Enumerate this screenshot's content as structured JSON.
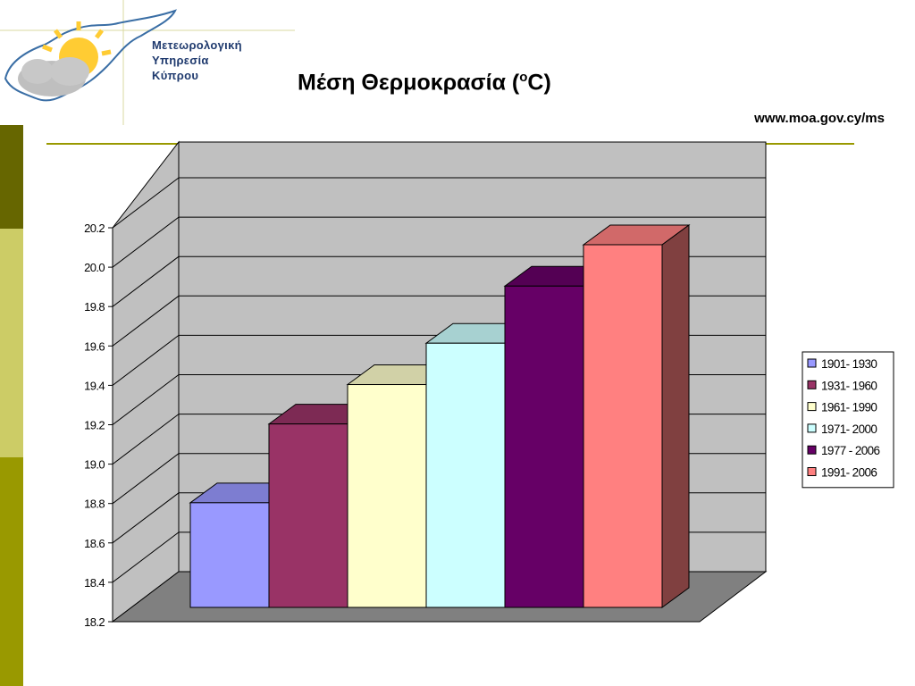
{
  "header": {
    "org_name_lines": [
      "Μετεωρολογική",
      "Υπηρεσία",
      "Κύπρου"
    ],
    "title_main": "Μέση Θερμοκρασία (",
    "title_sup": "o",
    "title_end": "C)",
    "website": "www.moa.gov.cy/ms"
  },
  "colors": {
    "strip": [
      "#666600",
      "#cccc66",
      "#999900"
    ],
    "title_rule": "#999900",
    "wall": "#c0c0c0",
    "floor": "#808080",
    "logo_text": "#1f3a6e",
    "sun": "#ffcc33"
  },
  "chart_data": {
    "type": "bar",
    "title": "Μέση Θερμοκρασία (oC)",
    "xlabel": "",
    "ylabel": "",
    "ylim": [
      18.2,
      20.2
    ],
    "yticks": [
      "20.2",
      "20.0",
      "19.8",
      "19.6",
      "19.4",
      "19.2",
      "19.0",
      "18.8",
      "18.6",
      "18.4",
      "18.2"
    ],
    "grid": true,
    "legend_position": "right",
    "series": [
      {
        "name": "1901- 1930",
        "value": 18.94,
        "color": "#9999ff"
      },
      {
        "name": "1931- 1960",
        "value": 19.34,
        "color": "#993366"
      },
      {
        "name": "1961- 1990",
        "value": 19.54,
        "color": "#ffffcc"
      },
      {
        "name": "1971- 2000",
        "value": 19.75,
        "color": "#ccffff"
      },
      {
        "name": "1977 - 2006",
        "value": 20.04,
        "color": "#660066"
      },
      {
        "name": "1991- 2006",
        "value": 20.25,
        "color": "#ff8080"
      }
    ]
  }
}
